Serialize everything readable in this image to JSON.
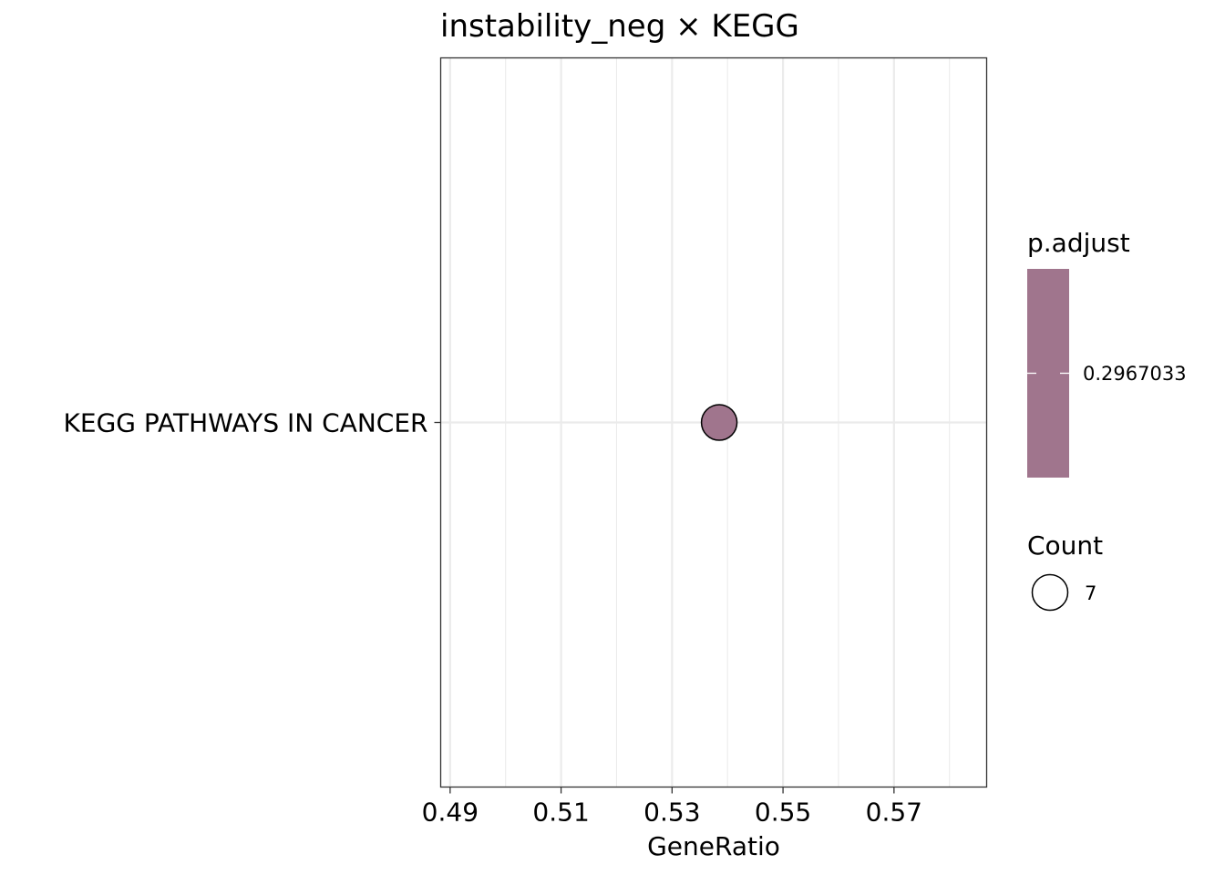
{
  "chart_data": {
    "type": "scatter",
    "title": "instability_neg × KEGG",
    "xlabel": "GeneRatio",
    "ylabel": "",
    "xlim": [
      0.4883,
      0.5867
    ],
    "x_ticks": [
      {
        "value": 0.49,
        "label": "0.49"
      },
      {
        "value": 0.51,
        "label": "0.51"
      },
      {
        "value": 0.53,
        "label": "0.53"
      },
      {
        "value": 0.55,
        "label": "0.55"
      },
      {
        "value": 0.57,
        "label": "0.57"
      }
    ],
    "x_minor_ticks": [
      0.5,
      0.52,
      0.54,
      0.56,
      0.58
    ],
    "categories": [
      "KEGG PATHWAYS IN CANCER"
    ],
    "points": [
      {
        "category": "KEGG PATHWAYS IN CANCER",
        "x": 0.5385,
        "count": 7,
        "p_adjust": 0.2967033,
        "color": "#a0758d"
      }
    ],
    "grid": true,
    "legend_position": "right",
    "color_legend": {
      "title": "p.adjust",
      "label": "0.2967033",
      "color": "#a0758d"
    },
    "size_legend": {
      "title": "Count",
      "label": "7"
    }
  }
}
